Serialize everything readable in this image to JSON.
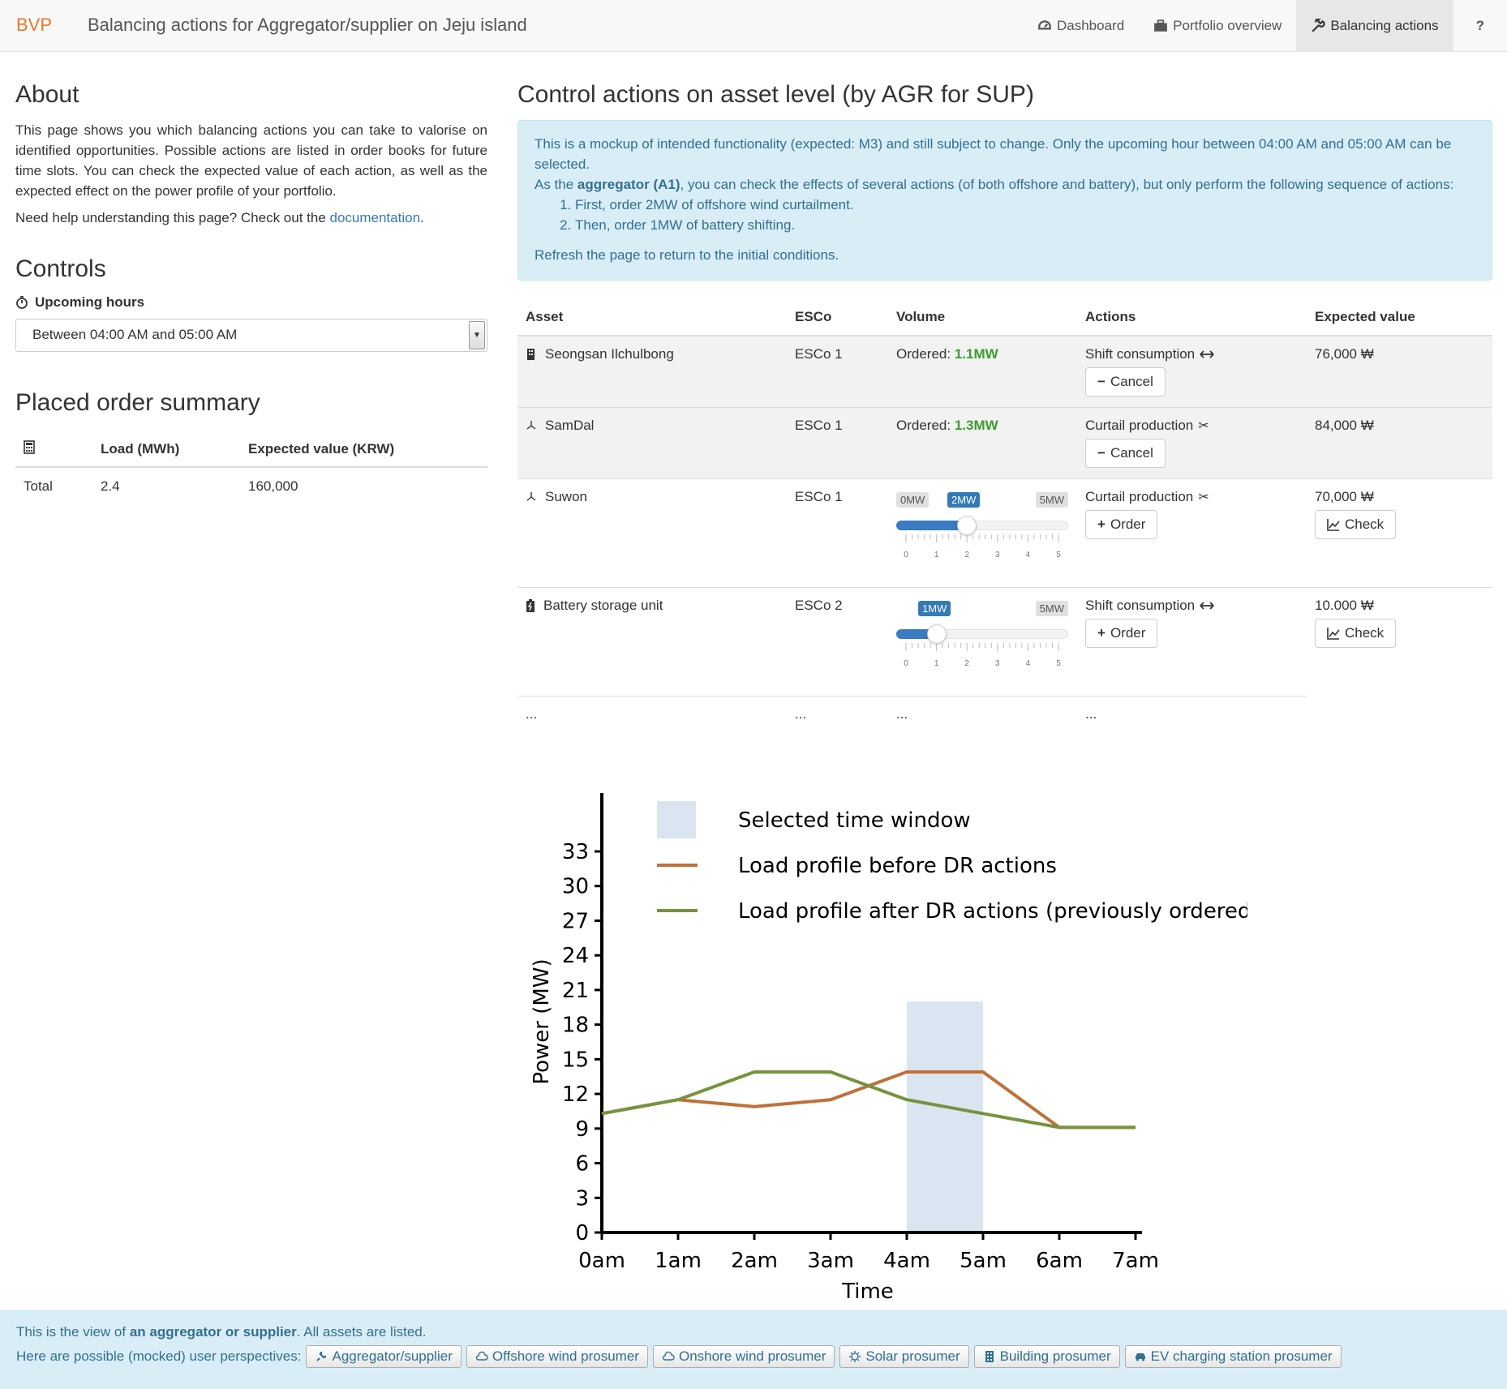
{
  "navbar": {
    "brand": "BVP",
    "title": "Balancing actions for Aggregator/supplier on Jeju island",
    "items": [
      {
        "label": "Dashboard",
        "icon": "dashboard-icon"
      },
      {
        "label": "Portfolio overview",
        "icon": "briefcase-icon"
      },
      {
        "label": "Balancing actions",
        "icon": "wrench-icon",
        "active": true
      },
      {
        "label": "?",
        "icon": ""
      }
    ]
  },
  "about": {
    "heading": "About",
    "text": "This page shows you which balancing actions you can take to valorise on identified opportunities. Possible actions are listed in order books for future time slots. You can check the expected value of each action, as well as the expected effect on the power profile of your portfolio.",
    "help_prefix": "Need help understanding this page? Check out the ",
    "help_link": "documentation",
    "help_suffix": "."
  },
  "controls": {
    "heading": "Controls",
    "upcoming_label": "Upcoming hours",
    "selected_hour": "Between 04:00 AM and 05:00 AM"
  },
  "summary": {
    "heading": "Placed order summary",
    "headers": [
      "Load (MWh)",
      "Expected value (KRW)"
    ],
    "row": {
      "label": "Total",
      "load": "2.4",
      "value": "160,000"
    }
  },
  "main": {
    "heading": "Control actions on asset level (by AGR for SUP)",
    "alert": {
      "line1": "This is a mockup of intended functionality (expected: M3) and still subject to change. Only the upcoming hour between 04:00 AM and 05:00 AM can be selected.",
      "line2_prefix": "As the ",
      "line2_bold": "aggregator (A1)",
      "line2_suffix": ", you can check the effects of several actions (of both offshore and battery), but only perform the following sequence of actions:",
      "step1": "First, order 2MW of offshore wind curtailment.",
      "step2": "Then, order 1MW of battery shifting.",
      "refresh": "Refresh the page to return to the initial conditions."
    },
    "table_headers": [
      "Asset",
      "ESCo",
      "Volume",
      "Actions",
      "Expected value"
    ],
    "rows": [
      {
        "asset": "Seongsan Ilchulbong",
        "esco": "ESCo 1",
        "volume_prefix": "Ordered: ",
        "volume": "1.1MW",
        "action": "Shift consumption",
        "button": "Cancel",
        "value": "76,000 ₩"
      },
      {
        "asset": "SamDal",
        "esco": "ESCo 1",
        "volume_prefix": "Ordered: ",
        "volume": "1.3MW",
        "action": "Curtail production",
        "button": "Cancel",
        "value": "84,000 ₩"
      },
      {
        "asset": "Suwon",
        "esco": "ESCo 1",
        "slider": {
          "min_label": "0MW",
          "sel_label": "2MW",
          "max_label": "5MW",
          "value": 2,
          "max": 5
        },
        "action": "Curtail production",
        "button": "Order",
        "value": "70,000 ₩",
        "check": "Check"
      },
      {
        "asset": "Battery storage unit",
        "esco": "ESCo 2",
        "slider": {
          "sel_label": "1MW",
          "max_label": "5MW",
          "value": 1,
          "max": 5
        },
        "action": "Shift consumption",
        "button": "Order",
        "value": "10.000 ₩",
        "check": "Check"
      }
    ],
    "ellipsis": "...",
    "tick_numbers": [
      "0",
      "1",
      "2",
      "3",
      "4",
      "5"
    ]
  },
  "chart_data": {
    "type": "line",
    "xlabel": "Time",
    "ylabel": "Power (MW)",
    "categories": [
      "0am",
      "1am",
      "2am",
      "3am",
      "4am",
      "5am",
      "6am",
      "7am"
    ],
    "yticks": [
      0,
      3,
      6,
      9,
      12,
      15,
      18,
      21,
      24,
      27,
      30,
      33
    ],
    "ylim": [
      0,
      34
    ],
    "selected_window": {
      "label": "Selected time window",
      "from": "4am",
      "to": "5am",
      "color": "#dbe5f1",
      "height": 20
    },
    "series": [
      {
        "name": "Load profile before DR actions",
        "color": "#c0703a",
        "values": [
          10.3,
          11.5,
          10.9,
          11.5,
          13.9,
          13.9,
          9.1,
          9.1
        ]
      },
      {
        "name": "Load profile after DR actions (previously ordered)",
        "color": "#77933c",
        "values": [
          10.3,
          11.5,
          13.9,
          13.9,
          11.5,
          10.3,
          9.1,
          9.1
        ]
      }
    ]
  },
  "footer": {
    "line1_prefix": "This is the view of ",
    "line1_bold": "an aggregator or supplier",
    "line1_suffix": ". All assets are listed.",
    "line2_label": "Here are possible (mocked) user perspectives:",
    "perspectives": [
      "Aggregator/supplier",
      "Offshore wind prosumer",
      "Onshore wind prosumer",
      "Solar prosumer",
      "Building prosumer",
      "EV charging station prosumer"
    ]
  }
}
